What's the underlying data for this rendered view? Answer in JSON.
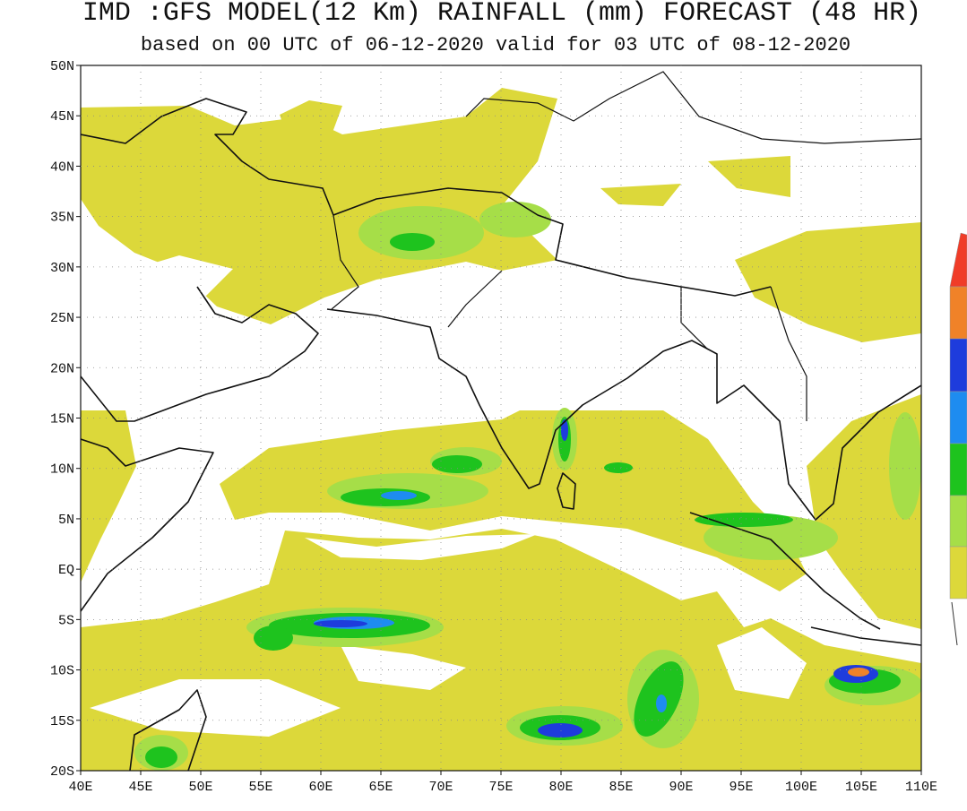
{
  "header": {
    "title": "IMD :GFS MODEL(12 Km) RAINFALL (mm) FORECAST (48 HR)",
    "subtitle": "based on 00 UTC of 06-12-2020 valid for 03 UTC of 08-12-2020"
  },
  "map": {
    "lat_labels": [
      "50N",
      "45N",
      "40N",
      "35N",
      "30N",
      "25N",
      "20N",
      "15N",
      "10N",
      "5N",
      "EQ",
      "5S",
      "10S",
      "15S",
      "20S"
    ],
    "lon_labels": [
      "40E",
      "45E",
      "50E",
      "55E",
      "60E",
      "65E",
      "70E",
      "75E",
      "80E",
      "85E",
      "90E",
      "95E",
      "100E",
      "105E",
      "110E"
    ]
  }
}
